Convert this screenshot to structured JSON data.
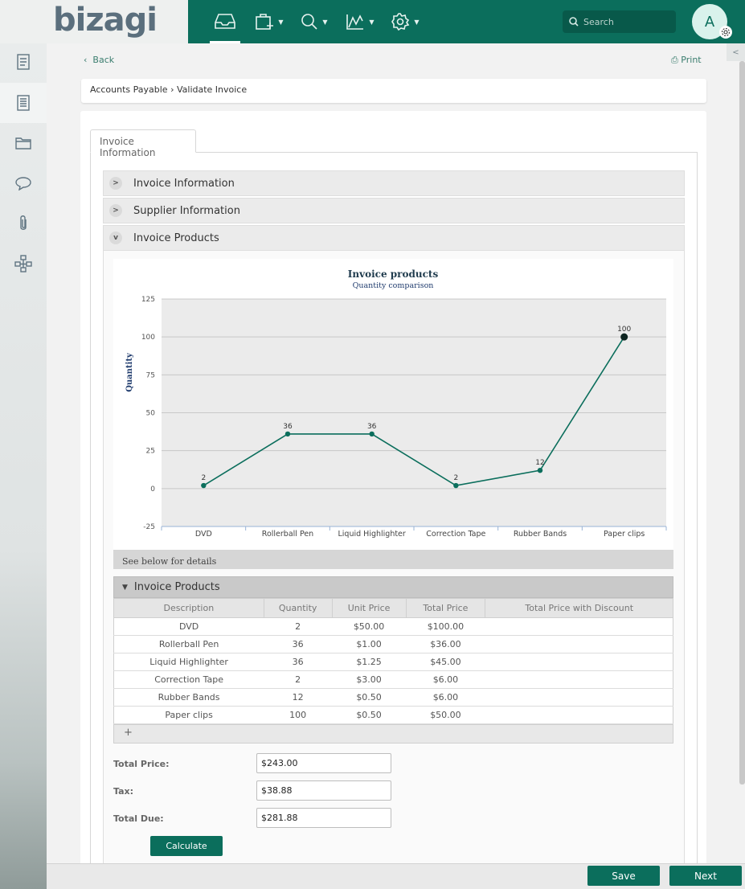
{
  "app": {
    "logo_text": "bizagi",
    "search_placeholder": "Search",
    "avatar_letter": "A"
  },
  "nav": {
    "items": [
      {
        "icon": "inbox-icon"
      },
      {
        "icon": "new-case-icon"
      },
      {
        "icon": "search-icon"
      },
      {
        "icon": "analytics-icon"
      },
      {
        "icon": "settings-icon"
      }
    ]
  },
  "sidebar": {
    "items": [
      {
        "icon": "form-icon"
      },
      {
        "icon": "document-icon"
      },
      {
        "icon": "folder-icon"
      },
      {
        "icon": "comment-icon"
      },
      {
        "icon": "attachment-icon"
      },
      {
        "icon": "process-map-icon"
      }
    ]
  },
  "page": {
    "back_label": "Back",
    "print_label": "Print",
    "breadcrumb": "Accounts Payable › Validate Invoice",
    "tab_label": "Invoice Information"
  },
  "accordion": {
    "sections": [
      {
        "title": "Invoice Information",
        "expanded": false
      },
      {
        "title": "Supplier Information",
        "expanded": false
      },
      {
        "title": "Invoice Products",
        "expanded": true
      }
    ]
  },
  "chart_data": {
    "type": "line",
    "title": "Invoice products",
    "subtitle": "Quantity comparison",
    "xlabel": "",
    "ylabel": "Quantity",
    "categories": [
      "DVD",
      "Rollerball Pen",
      "Liquid Highlighter",
      "Correction Tape",
      "Rubber Bands",
      "Paper clips"
    ],
    "series": [
      {
        "values": [
          2,
          36,
          36,
          2,
          12,
          100
        ]
      }
    ],
    "ylim": [
      -25,
      125
    ],
    "yticks": [
      125,
      100,
      75,
      50,
      25,
      0,
      -25
    ],
    "grid": true,
    "color": "#0b6e5c",
    "footnote": "See below for details"
  },
  "grid": {
    "title": "Invoice Products",
    "columns": [
      "Description",
      "Quantity",
      "Unit Price",
      "Total Price",
      "Total Price with Discount"
    ],
    "rows": [
      [
        "DVD",
        "2",
        "$50.00",
        "$100.00",
        ""
      ],
      [
        "Rollerball Pen",
        "36",
        "$1.00",
        "$36.00",
        ""
      ],
      [
        "Liquid Highlighter",
        "36",
        "$1.25",
        "$45.00",
        ""
      ],
      [
        "Correction Tape",
        "2",
        "$3.00",
        "$6.00",
        ""
      ],
      [
        "Rubber Bands",
        "12",
        "$0.50",
        "$6.00",
        ""
      ],
      [
        "Paper clips",
        "100",
        "$0.50",
        "$50.00",
        ""
      ]
    ],
    "add_label": "+"
  },
  "totals": {
    "total_price_label": "Total Price:",
    "total_price_value": "$243.00",
    "tax_label": "Tax:",
    "tax_value": "$38.88",
    "total_due_label": "Total Due:",
    "total_due_value": "$281.88",
    "calculate_label": "Calculate"
  },
  "footer": {
    "save_label": "Save",
    "next_label": "Next"
  },
  "colors": {
    "brand": "#0b6e5c",
    "accent_text": "#3a7d6e"
  }
}
